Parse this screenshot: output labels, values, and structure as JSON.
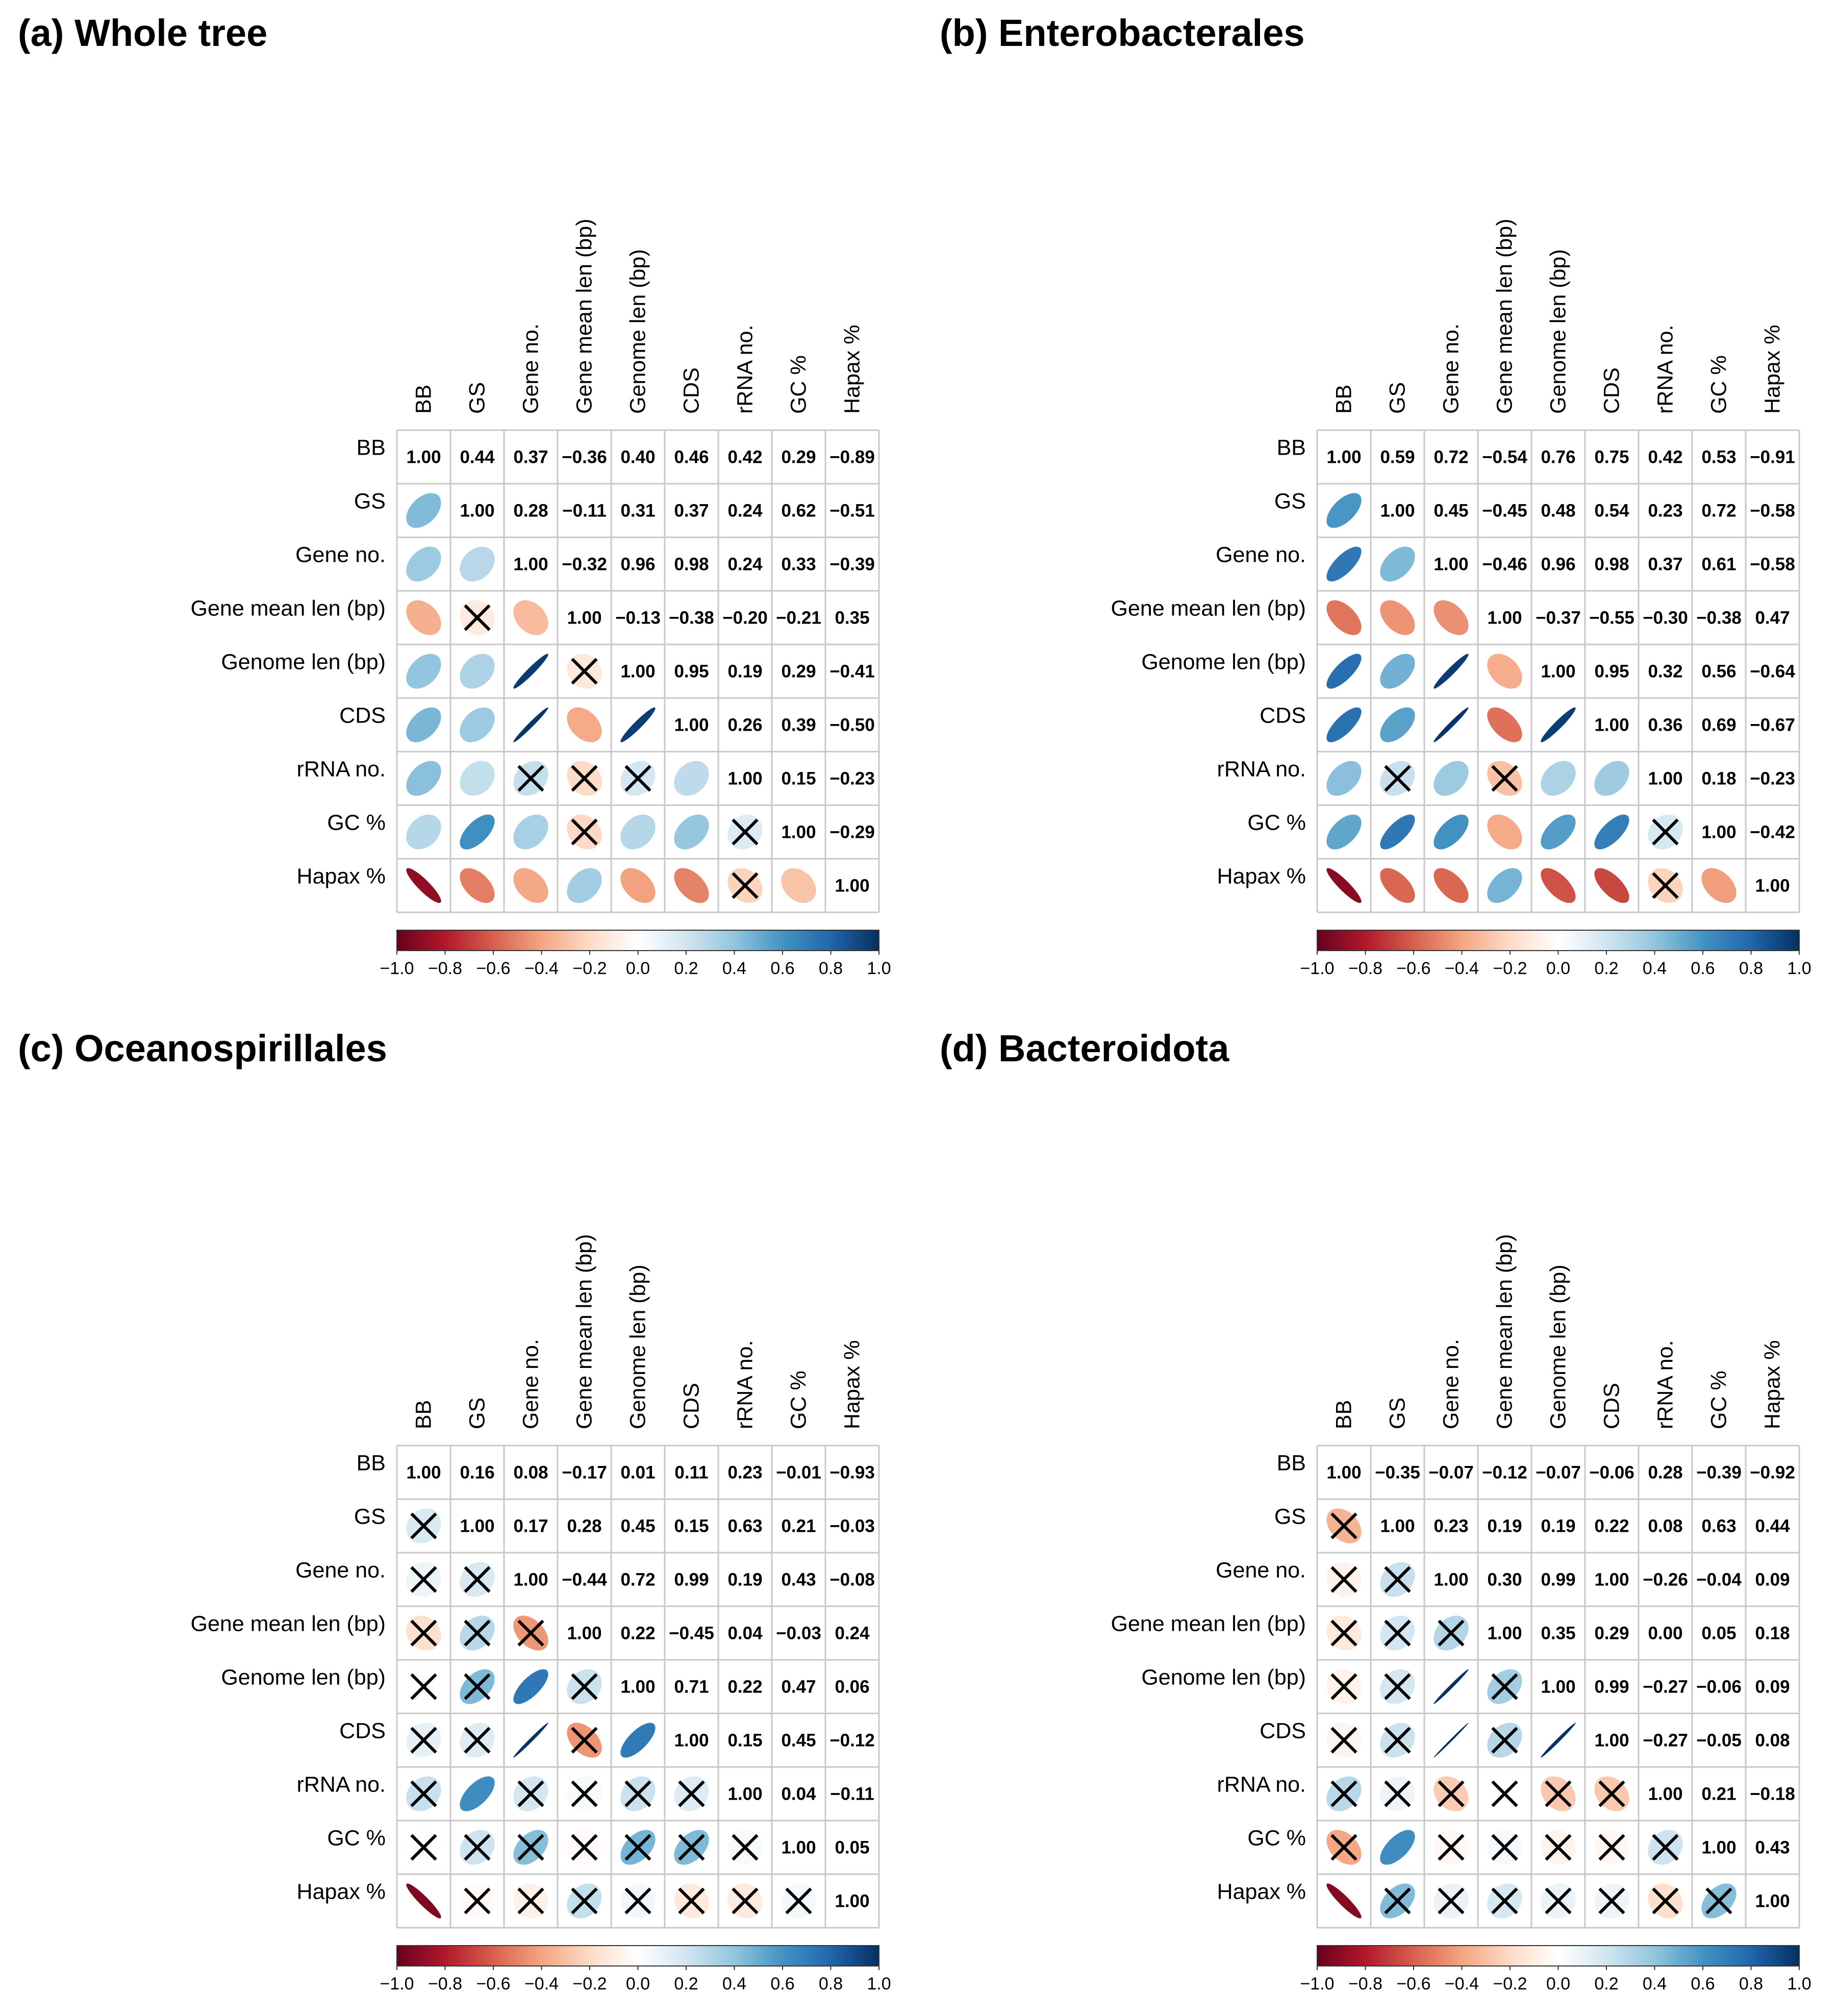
{
  "variables": [
    "BB",
    "GS",
    "Gene no.",
    "Gene mean len (bp)",
    "Genome len (bp)",
    "CDS",
    "rRNA no.",
    "GC %",
    "Hapax %"
  ],
  "colorbar_ticks": [
    "−1.0",
    "−0.8",
    "−0.6",
    "−0.4",
    "−0.2",
    "0.0",
    "0.2",
    "0.4",
    "0.6",
    "0.8",
    "1.0"
  ],
  "chart_data": [
    {
      "type": "heatmap",
      "title": "(a) Whole tree",
      "matrix": [
        [
          1.0,
          0.44,
          0.37,
          -0.36,
          0.4,
          0.46,
          0.42,
          0.29,
          -0.89
        ],
        [
          0.44,
          1.0,
          0.28,
          -0.11,
          0.31,
          0.37,
          0.24,
          0.62,
          -0.51
        ],
        [
          0.37,
          0.28,
          1.0,
          -0.32,
          0.96,
          0.98,
          0.24,
          0.33,
          -0.39
        ],
        [
          -0.36,
          -0.11,
          -0.32,
          1.0,
          -0.13,
          -0.38,
          -0.2,
          -0.21,
          0.35
        ],
        [
          0.4,
          0.31,
          0.96,
          -0.13,
          1.0,
          0.95,
          0.19,
          0.29,
          -0.41
        ],
        [
          0.46,
          0.37,
          0.98,
          -0.38,
          0.95,
          1.0,
          0.26,
          0.39,
          -0.5
        ],
        [
          0.42,
          0.24,
          0.24,
          -0.2,
          0.19,
          0.26,
          1.0,
          0.15,
          -0.23
        ],
        [
          0.29,
          0.62,
          0.33,
          -0.21,
          0.29,
          0.39,
          0.15,
          1.0,
          -0.29
        ],
        [
          -0.89,
          -0.51,
          -0.39,
          0.35,
          -0.41,
          -0.5,
          -0.23,
          -0.29,
          1.0
        ]
      ],
      "upper_labels": [
        [
          "1.00",
          "0.44",
          "0.37",
          "−0.36",
          "0.40",
          "0.46",
          "0.42",
          "0.29",
          "−0.89"
        ],
        [
          "1.00",
          "0.28",
          "−0.11",
          "0.31",
          "0.37",
          "0.24",
          "0.62",
          "−0.51"
        ],
        [
          "1.00",
          "−0.32",
          "0.96",
          "0.98",
          "0.24",
          "0.33",
          "−0.39"
        ],
        [
          "1.00",
          "−0.13",
          "−0.38",
          "−0.20",
          "−0.21",
          "0.35"
        ],
        [
          "1.00",
          "0.95",
          "0.19",
          "0.29",
          "−0.41"
        ],
        [
          "1.00",
          "0.26",
          "0.39",
          "−0.50"
        ],
        [
          "1.00",
          "0.15",
          "−0.23"
        ],
        [
          "1.00",
          "−0.29"
        ],
        [
          "1.00"
        ]
      ],
      "not_significant": [
        [
          1,
          3
        ],
        [
          3,
          4
        ],
        [
          2,
          6
        ],
        [
          3,
          6
        ],
        [
          4,
          6
        ],
        [
          3,
          7
        ],
        [
          6,
          7
        ],
        [
          6,
          8
        ]
      ],
      "colorbar": {
        "min": -1.0,
        "max": 1.0
      }
    },
    {
      "type": "heatmap",
      "title": "(b) Enterobacterales",
      "matrix": [
        [
          1.0,
          0.59,
          0.72,
          -0.54,
          0.76,
          0.75,
          0.42,
          0.53,
          -0.91
        ],
        [
          0.59,
          1.0,
          0.45,
          -0.45,
          0.48,
          0.54,
          0.23,
          0.72,
          -0.58
        ],
        [
          0.72,
          0.45,
          1.0,
          -0.46,
          0.96,
          0.98,
          0.37,
          0.61,
          -0.58
        ],
        [
          -0.54,
          -0.45,
          -0.46,
          1.0,
          -0.37,
          -0.55,
          -0.3,
          -0.38,
          0.47
        ],
        [
          0.76,
          0.48,
          0.96,
          -0.37,
          1.0,
          0.95,
          0.32,
          0.56,
          -0.64
        ],
        [
          0.75,
          0.54,
          0.98,
          -0.55,
          0.95,
          1.0,
          0.36,
          0.69,
          -0.67
        ],
        [
          0.42,
          0.23,
          0.37,
          -0.3,
          0.32,
          0.36,
          1.0,
          0.18,
          -0.23
        ],
        [
          0.53,
          0.72,
          0.61,
          -0.38,
          0.56,
          0.69,
          0.18,
          1.0,
          -0.42
        ],
        [
          -0.91,
          -0.58,
          -0.58,
          0.47,
          -0.64,
          -0.67,
          -0.23,
          -0.42,
          1.0
        ]
      ],
      "upper_labels": [
        [
          "1.00",
          "0.59",
          "0.72",
          "−0.54",
          "0.76",
          "0.75",
          "0.42",
          "0.53",
          "−0.91"
        ],
        [
          "1.00",
          "0.45",
          "−0.45",
          "0.48",
          "0.54",
          "0.23",
          "0.72",
          "−0.58"
        ],
        [
          "1.00",
          "−0.46",
          "0.96",
          "0.98",
          "0.37",
          "0.61",
          "−0.58"
        ],
        [
          "1.00",
          "−0.37",
          "−0.55",
          "−0.30",
          "−0.38",
          "0.47"
        ],
        [
          "1.00",
          "0.95",
          "0.32",
          "0.56",
          "−0.64"
        ],
        [
          "1.00",
          "0.36",
          "0.69",
          "−0.67"
        ],
        [
          "1.00",
          "0.18",
          "−0.23"
        ],
        [
          "1.00",
          "−0.42"
        ],
        [
          "1.00"
        ]
      ],
      "not_significant": [
        [
          1,
          6
        ],
        [
          3,
          6
        ],
        [
          6,
          7
        ],
        [
          6,
          8
        ]
      ],
      "colorbar": {
        "min": -1.0,
        "max": 1.0
      }
    },
    {
      "type": "heatmap",
      "title": "(c) Oceanospirillales",
      "matrix": [
        [
          1.0,
          0.16,
          0.08,
          -0.17,
          0.01,
          0.11,
          0.23,
          -0.01,
          -0.93
        ],
        [
          0.16,
          1.0,
          0.17,
          0.28,
          0.45,
          0.15,
          0.63,
          0.21,
          -0.03
        ],
        [
          0.08,
          0.17,
          1.0,
          -0.44,
          0.72,
          0.99,
          0.19,
          0.43,
          -0.08
        ],
        [
          -0.17,
          0.28,
          -0.44,
          1.0,
          0.22,
          -0.45,
          0.04,
          -0.03,
          0.24
        ],
        [
          0.01,
          0.45,
          0.72,
          0.22,
          1.0,
          0.71,
          0.22,
          0.47,
          0.06
        ],
        [
          0.11,
          0.15,
          0.99,
          -0.45,
          0.71,
          1.0,
          0.15,
          0.45,
          -0.12
        ],
        [
          0.23,
          0.63,
          0.19,
          0.04,
          0.22,
          0.15,
          1.0,
          0.04,
          -0.11
        ],
        [
          -0.01,
          0.21,
          0.43,
          -0.03,
          0.47,
          0.45,
          0.04,
          1.0,
          0.05
        ],
        [
          -0.93,
          -0.03,
          -0.08,
          0.24,
          0.06,
          -0.12,
          -0.11,
          0.05,
          1.0
        ]
      ],
      "upper_labels": [
        [
          "1.00",
          "0.16",
          "0.08",
          "−0.17",
          "0.01",
          "0.11",
          "0.23",
          "−0.01",
          "−0.93"
        ],
        [
          "1.00",
          "0.17",
          "0.28",
          "0.45",
          "0.15",
          "0.63",
          "0.21",
          "−0.03"
        ],
        [
          "1.00",
          "−0.44",
          "0.72",
          "0.99",
          "0.19",
          "0.43",
          "−0.08"
        ],
        [
          "1.00",
          "0.22",
          "−0.45",
          "0.04",
          "−0.03",
          "0.24"
        ],
        [
          "1.00",
          "0.71",
          "0.22",
          "0.47",
          "0.06"
        ],
        [
          "1.00",
          "0.15",
          "0.45",
          "−0.12"
        ],
        [
          "1.00",
          "0.04",
          "−0.11"
        ],
        [
          "1.00",
          "0.05"
        ],
        [
          "1.00"
        ]
      ],
      "not_significant": [
        [
          0,
          1
        ],
        [
          0,
          2
        ],
        [
          1,
          2
        ],
        [
          0,
          3
        ],
        [
          1,
          3
        ],
        [
          2,
          3
        ],
        [
          0,
          4
        ],
        [
          1,
          4
        ],
        [
          3,
          4
        ],
        [
          0,
          5
        ],
        [
          1,
          5
        ],
        [
          3,
          5
        ],
        [
          0,
          6
        ],
        [
          2,
          6
        ],
        [
          3,
          6
        ],
        [
          4,
          6
        ],
        [
          5,
          6
        ],
        [
          0,
          7
        ],
        [
          1,
          7
        ],
        [
          2,
          7
        ],
        [
          3,
          7
        ],
        [
          4,
          7
        ],
        [
          5,
          7
        ],
        [
          6,
          7
        ],
        [
          1,
          8
        ],
        [
          2,
          8
        ],
        [
          3,
          8
        ],
        [
          4,
          8
        ],
        [
          5,
          8
        ],
        [
          6,
          8
        ],
        [
          7,
          8
        ]
      ],
      "colorbar": {
        "min": -1.0,
        "max": 1.0
      }
    },
    {
      "type": "heatmap",
      "title": "(d) Bacteroidota",
      "matrix": [
        [
          1.0,
          -0.35,
          -0.07,
          -0.12,
          -0.07,
          -0.06,
          0.28,
          -0.39,
          -0.92
        ],
        [
          -0.35,
          1.0,
          0.23,
          0.19,
          0.19,
          0.22,
          0.08,
          0.63,
          0.44
        ],
        [
          -0.07,
          0.23,
          1.0,
          0.3,
          0.99,
          1.0,
          -0.26,
          -0.04,
          0.09
        ],
        [
          -0.12,
          0.19,
          0.3,
          1.0,
          0.35,
          0.29,
          0.0,
          0.05,
          0.18
        ],
        [
          -0.07,
          0.19,
          0.99,
          0.35,
          1.0,
          0.99,
          -0.27,
          -0.06,
          0.09
        ],
        [
          -0.06,
          0.22,
          1.0,
          0.29,
          0.99,
          1.0,
          -0.27,
          -0.05,
          0.08
        ],
        [
          0.28,
          0.08,
          -0.26,
          0.0,
          -0.27,
          -0.27,
          1.0,
          0.21,
          -0.18
        ],
        [
          -0.39,
          0.63,
          -0.04,
          0.05,
          -0.06,
          -0.05,
          0.21,
          1.0,
          0.43
        ],
        [
          -0.92,
          0.44,
          0.09,
          0.18,
          0.09,
          0.08,
          -0.18,
          0.43,
          1.0
        ]
      ],
      "upper_labels": [
        [
          "1.00",
          "−0.35",
          "−0.07",
          "−0.12",
          "−0.07",
          "−0.06",
          "0.28",
          "−0.39",
          "−0.92"
        ],
        [
          "1.00",
          "0.23",
          "0.19",
          "0.19",
          "0.22",
          "0.08",
          "0.63",
          "0.44"
        ],
        [
          "1.00",
          "0.30",
          "0.99",
          "1.00",
          "−0.26",
          "−0.04",
          "0.09"
        ],
        [
          "1.00",
          "0.35",
          "0.29",
          "0.00",
          "0.05",
          "0.18"
        ],
        [
          "1.00",
          "0.99",
          "−0.27",
          "−0.06",
          "0.09"
        ],
        [
          "1.00",
          "−0.27",
          "−0.05",
          "0.08"
        ],
        [
          "1.00",
          "0.21",
          "−0.18"
        ],
        [
          "1.00",
          "0.43"
        ],
        [
          "1.00"
        ]
      ],
      "not_significant": [
        [
          0,
          1
        ],
        [
          0,
          2
        ],
        [
          1,
          2
        ],
        [
          0,
          3
        ],
        [
          1,
          3
        ],
        [
          2,
          3
        ],
        [
          0,
          4
        ],
        [
          1,
          4
        ],
        [
          3,
          4
        ],
        [
          0,
          5
        ],
        [
          1,
          5
        ],
        [
          3,
          5
        ],
        [
          0,
          6
        ],
        [
          1,
          6
        ],
        [
          2,
          6
        ],
        [
          3,
          6
        ],
        [
          4,
          6
        ],
        [
          5,
          6
        ],
        [
          0,
          7
        ],
        [
          2,
          7
        ],
        [
          3,
          7
        ],
        [
          4,
          7
        ],
        [
          5,
          7
        ],
        [
          6,
          7
        ],
        [
          1,
          8
        ],
        [
          2,
          8
        ],
        [
          3,
          8
        ],
        [
          4,
          8
        ],
        [
          5,
          8
        ],
        [
          6,
          8
        ],
        [
          7,
          8
        ]
      ],
      "colorbar": {
        "min": -1.0,
        "max": 1.0
      }
    }
  ]
}
